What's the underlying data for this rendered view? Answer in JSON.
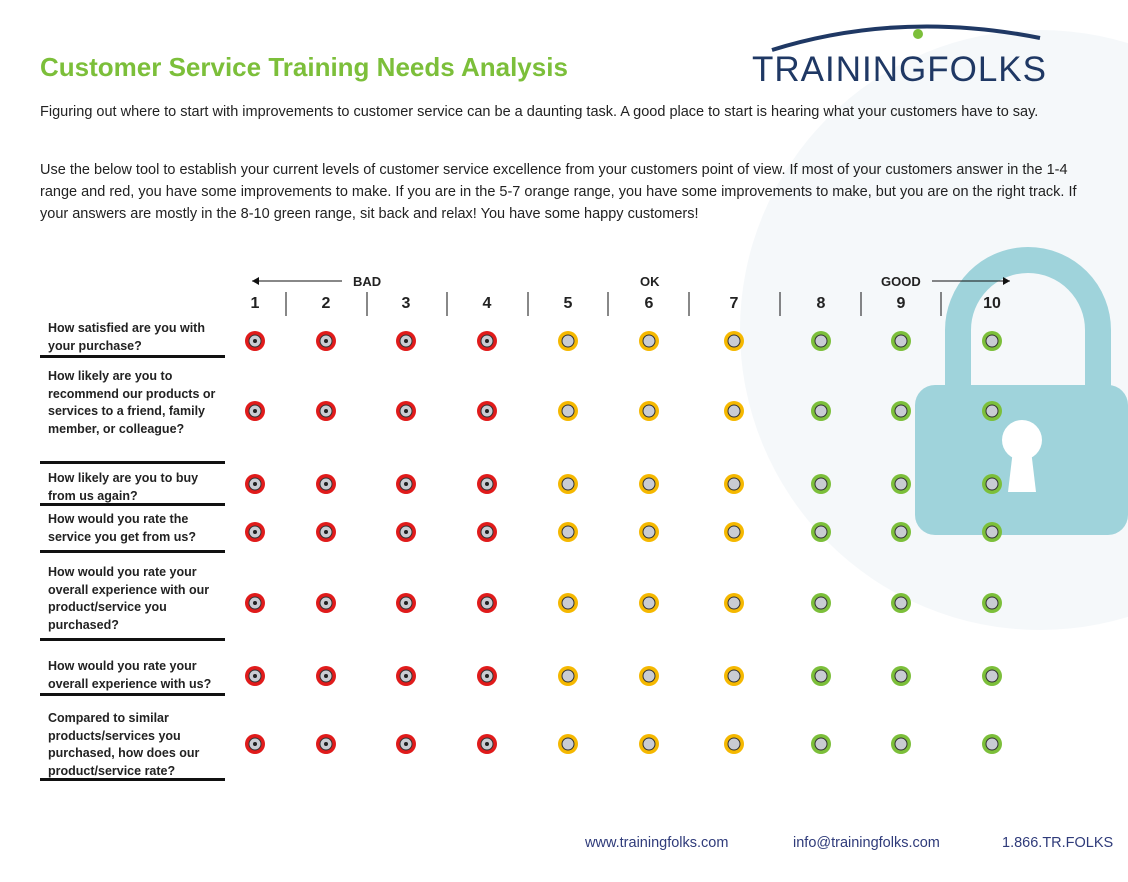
{
  "header": {
    "title": "Customer Service Training Needs Analysis",
    "logo": "TRAININGFOLKS"
  },
  "intro": [
    "Figuring out where to start with improvements to customer service can be a daunting task. A good place to start is hearing what your customers have to say.",
    "Use the below tool to establish your current levels of customer service excellence from your customers point of view.  If most of your customers answer in the 1-4 range and red, you have some improvements to make. If you are in the 5-7 orange range, you have some improvements to make, but you are on the right track. If your answers are mostly in the 8-10 green range, sit back and relax! You have some happy customers!"
  ],
  "scale": {
    "bad": "BAD",
    "ok": "OK",
    "good": "GOOD",
    "ratings": [
      1,
      2,
      3,
      4,
      5,
      6,
      7,
      8,
      9,
      10
    ]
  },
  "questions": [
    "How satisfied are you with your purchase?",
    "How likely are you to recommend our products or services to a friend, family member, or colleague?",
    "How likely are you to buy from us again?",
    "How would you rate the service you get from us?",
    "How would you rate your overall experience with our product/service you purchased?",
    "How would you rate your overall experience with us?",
    "Compared to similar products/services you purchased, how does our product/service rate?"
  ],
  "footer": {
    "website": "www.trainingfolks.com",
    "email": "info@trainingfolks.com",
    "phone": "1.866.TR.FOLKS"
  }
}
